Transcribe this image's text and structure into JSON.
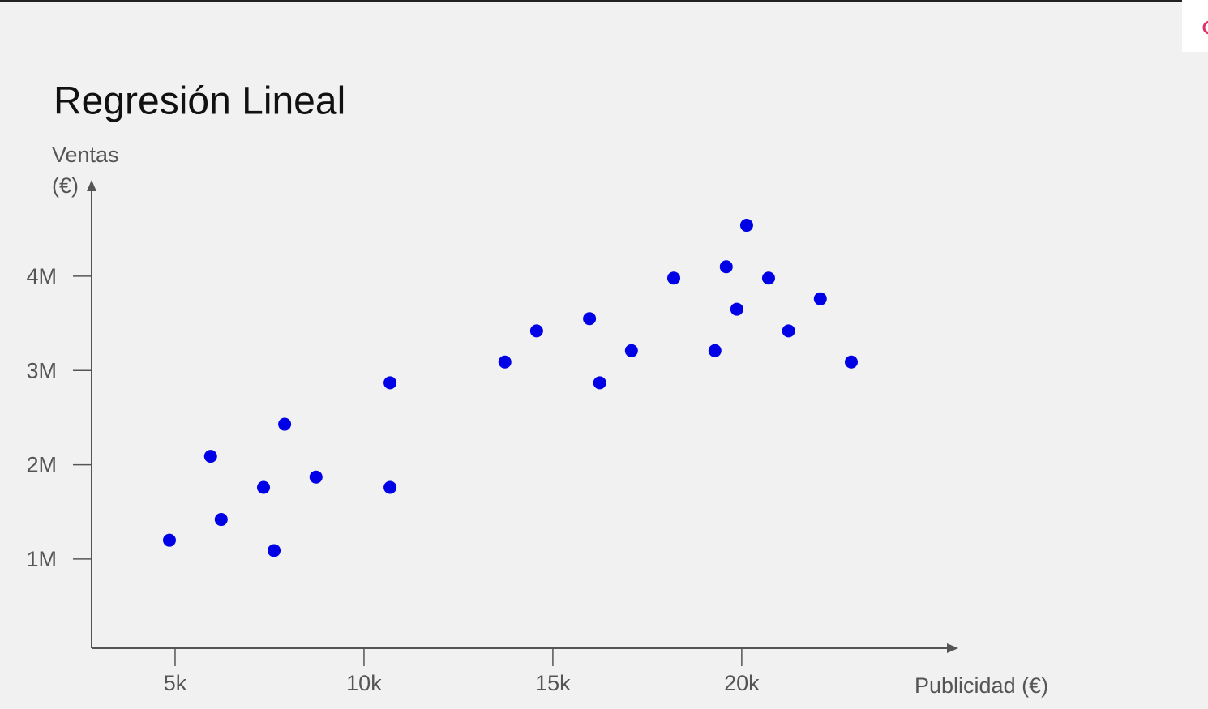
{
  "chart_data": {
    "type": "scatter",
    "title": "Regresión Lineal",
    "xlabel": "Publicidad (€)",
    "ylabel": [
      "Ventas",
      "(€)"
    ],
    "color": "#0000e6",
    "x": [
      4850,
      5940,
      6220,
      7340,
      7620,
      7900,
      8730,
      10690,
      10690,
      13730,
      14570,
      15970,
      16240,
      17080,
      18200,
      19290,
      19590,
      19870,
      20130,
      20710,
      21240,
      22080,
      22900
    ],
    "values": [
      1200000,
      2090000,
      1420000,
      1760000,
      1090000,
      2430000,
      1870000,
      2870000,
      1760000,
      3090000,
      3420000,
      3550000,
      2870000,
      3210000,
      3980000,
      3210000,
      4100000,
      3650000,
      4540000,
      3980000,
      3420000,
      3760000,
      3090000
    ],
    "xlim": [
      2790,
      25690
    ],
    "ylim": [
      54000,
      4970000
    ],
    "xticks": [
      {
        "value": 5000,
        "label": "5k"
      },
      {
        "value": 10000,
        "label": "10k"
      },
      {
        "value": 15000,
        "label": "15k"
      },
      {
        "value": 20000,
        "label": "20k"
      }
    ],
    "yticks": [
      {
        "value": 1000000,
        "label": "1M"
      },
      {
        "value": 2000000,
        "label": "2M"
      },
      {
        "value": 3000000,
        "label": "3M"
      },
      {
        "value": 4000000,
        "label": "4M"
      }
    ],
    "grid": false
  }
}
